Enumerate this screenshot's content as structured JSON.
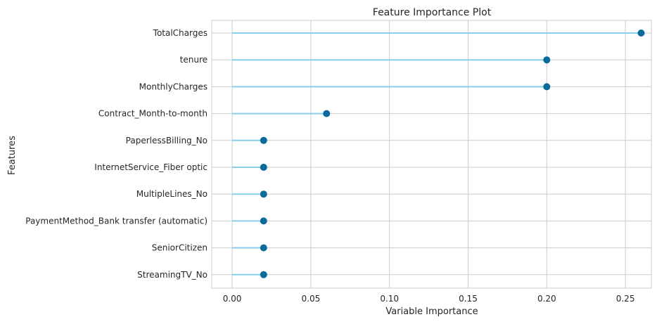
{
  "chart_data": {
    "type": "lollipop",
    "orientation": "horizontal",
    "title": "Feature Importance Plot",
    "xlabel": "Variable Importance",
    "ylabel": "Features",
    "xlim": [
      -0.013,
      0.2665
    ],
    "xticks": [
      0.0,
      0.05,
      0.1,
      0.15,
      0.2,
      0.25
    ],
    "xtick_labels": [
      "0.00",
      "0.05",
      "0.10",
      "0.15",
      "0.20",
      "0.25"
    ],
    "grid": true,
    "categories": [
      "TotalCharges",
      "tenure",
      "MonthlyCharges",
      "Contract_Month-to-month",
      "PaperlessBilling_No",
      "InternetService_Fiber optic",
      "MultipleLines_No",
      "PaymentMethod_Bank transfer (automatic)",
      "SeniorCitizen",
      "StreamingTV_No"
    ],
    "values": [
      0.26,
      0.2,
      0.2,
      0.06,
      0.02,
      0.02,
      0.02,
      0.02,
      0.02,
      0.02
    ],
    "colors": {
      "stem": "#87ceeb",
      "marker": "#0a6a9a"
    }
  }
}
